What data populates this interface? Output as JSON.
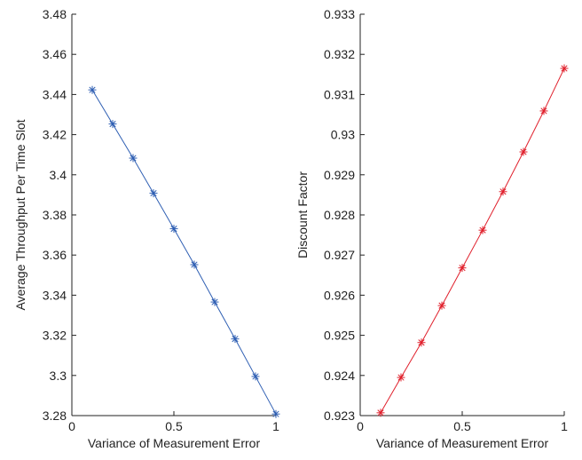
{
  "chart_data": [
    {
      "type": "line",
      "title": "",
      "xlabel": "Variance of Measurement Error",
      "ylabel": "Average Throughput Per Time Slot",
      "xlim": [
        0,
        1
      ],
      "ylim": [
        3.28,
        3.48
      ],
      "grid": false,
      "marker": "asterisk",
      "color": "#2f5fb3",
      "x_ticks": [
        "0",
        "0.5",
        "1"
      ],
      "y_ticks": [
        "3.28",
        "3.3",
        "3.32",
        "3.34",
        "3.36",
        "3.38",
        "3.4",
        "3.42",
        "3.44",
        "3.46",
        "3.48"
      ],
      "series": [
        {
          "x": [
            0.1,
            0.2,
            0.3,
            0.4,
            0.5,
            0.6,
            0.7,
            0.8,
            0.9,
            1.0
          ],
          "y": [
            3.4423,
            3.4253,
            3.4083,
            3.3908,
            3.3731,
            3.3552,
            3.3366,
            3.3182,
            3.2995,
            3.2808
          ]
        }
      ]
    },
    {
      "type": "line",
      "title": "",
      "xlabel": "Variance of Measurement Error",
      "ylabel": "Discount Factor",
      "xlim": [
        0,
        1
      ],
      "ylim": [
        0.923,
        0.933
      ],
      "grid": false,
      "marker": "asterisk",
      "color": "#e0202c",
      "x_ticks": [
        "0",
        "0.5",
        "1"
      ],
      "y_ticks": [
        "0.923",
        "0.924",
        "0.925",
        "0.926",
        "0.927",
        "0.928",
        "0.929",
        "0.93",
        "0.931",
        "0.932",
        "0.933"
      ],
      "series": [
        {
          "x": [
            0.1,
            0.2,
            0.3,
            0.4,
            0.5,
            0.6,
            0.7,
            0.8,
            0.9,
            1.0
          ],
          "y": [
            0.92307,
            0.92395,
            0.92482,
            0.92574,
            0.92668,
            0.92762,
            0.92858,
            0.92957,
            0.93059,
            0.93165
          ]
        }
      ]
    }
  ]
}
